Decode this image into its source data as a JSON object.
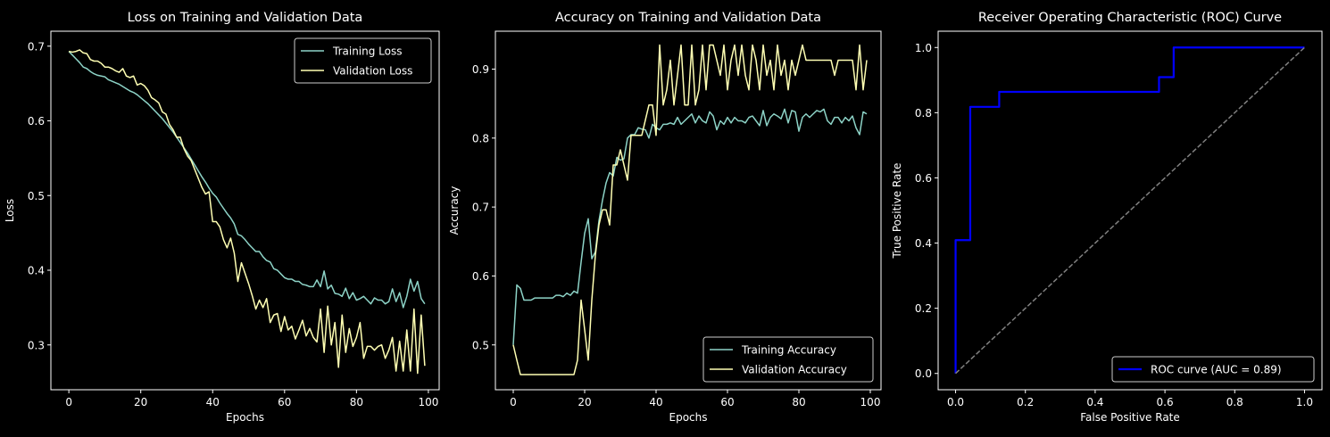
{
  "chart_data": [
    {
      "type": "line",
      "title": "Loss on Training and Validation Data",
      "xlabel": "Epochs",
      "ylabel": "Loss",
      "xlim": [
        -5,
        103
      ],
      "ylim": [
        0.24,
        0.72
      ],
      "xticks": [
        0,
        20,
        40,
        60,
        80,
        100
      ],
      "yticks": [
        0.3,
        0.4,
        0.5,
        0.6,
        0.7
      ],
      "legend_position": "top-right",
      "grid": false,
      "series": [
        {
          "name": "Training Loss",
          "color": "#8dd3c7",
          "x": [
            0,
            1,
            2,
            3,
            4,
            5,
            6,
            7,
            8,
            9,
            10,
            11,
            12,
            13,
            14,
            15,
            16,
            17,
            18,
            19,
            20,
            21,
            22,
            23,
            24,
            25,
            26,
            27,
            28,
            29,
            30,
            31,
            32,
            33,
            34,
            35,
            36,
            37,
            38,
            39,
            40,
            41,
            42,
            43,
            44,
            45,
            46,
            47,
            48,
            49,
            50,
            51,
            52,
            53,
            54,
            55,
            56,
            57,
            58,
            59,
            60,
            61,
            62,
            63,
            64,
            65,
            66,
            67,
            68,
            69,
            70,
            71,
            72,
            73,
            74,
            75,
            76,
            77,
            78,
            79,
            80,
            81,
            82,
            83,
            84,
            85,
            86,
            87,
            88,
            89,
            90,
            91,
            92,
            93,
            94,
            95,
            96,
            97,
            98,
            99
          ],
          "y": [
            0.693,
            0.688,
            0.683,
            0.678,
            0.672,
            0.67,
            0.666,
            0.663,
            0.661,
            0.66,
            0.659,
            0.655,
            0.653,
            0.651,
            0.649,
            0.646,
            0.643,
            0.64,
            0.638,
            0.635,
            0.631,
            0.627,
            0.623,
            0.618,
            0.613,
            0.608,
            0.603,
            0.597,
            0.591,
            0.585,
            0.578,
            0.571,
            0.564,
            0.557,
            0.549,
            0.541,
            0.533,
            0.525,
            0.518,
            0.51,
            0.503,
            0.498,
            0.49,
            0.483,
            0.476,
            0.47,
            0.462,
            0.448,
            0.446,
            0.441,
            0.435,
            0.43,
            0.425,
            0.425,
            0.418,
            0.413,
            0.411,
            0.402,
            0.4,
            0.395,
            0.39,
            0.388,
            0.388,
            0.385,
            0.385,
            0.381,
            0.38,
            0.378,
            0.378,
            0.387,
            0.378,
            0.399,
            0.375,
            0.38,
            0.369,
            0.368,
            0.365,
            0.376,
            0.362,
            0.37,
            0.36,
            0.362,
            0.365,
            0.36,
            0.355,
            0.363,
            0.36,
            0.36,
            0.355,
            0.358,
            0.375,
            0.358,
            0.37,
            0.35,
            0.365,
            0.388,
            0.372,
            0.385,
            0.362,
            0.355
          ]
        },
        {
          "name": "Validation Loss",
          "color": "#ffffb3",
          "x": [
            0,
            1,
            2,
            3,
            4,
            5,
            6,
            7,
            8,
            9,
            10,
            11,
            12,
            13,
            14,
            15,
            16,
            17,
            18,
            19,
            20,
            21,
            22,
            23,
            24,
            25,
            26,
            27,
            28,
            29,
            30,
            31,
            32,
            33,
            34,
            35,
            36,
            37,
            38,
            39,
            40,
            41,
            42,
            43,
            44,
            45,
            46,
            47,
            48,
            49,
            50,
            51,
            52,
            53,
            54,
            55,
            56,
            57,
            58,
            59,
            60,
            61,
            62,
            63,
            64,
            65,
            66,
            67,
            68,
            69,
            70,
            71,
            72,
            73,
            74,
            75,
            76,
            77,
            78,
            79,
            80,
            81,
            82,
            83,
            84,
            85,
            86,
            87,
            88,
            89,
            90,
            91,
            92,
            93,
            94,
            95,
            96,
            97,
            98,
            99
          ],
          "y": [
            0.693,
            0.692,
            0.693,
            0.695,
            0.691,
            0.69,
            0.682,
            0.68,
            0.68,
            0.677,
            0.672,
            0.672,
            0.67,
            0.667,
            0.665,
            0.67,
            0.66,
            0.658,
            0.66,
            0.648,
            0.65,
            0.647,
            0.641,
            0.631,
            0.628,
            0.624,
            0.612,
            0.609,
            0.595,
            0.588,
            0.578,
            0.578,
            0.563,
            0.553,
            0.547,
            0.535,
            0.523,
            0.511,
            0.502,
            0.505,
            0.465,
            0.465,
            0.458,
            0.441,
            0.43,
            0.443,
            0.423,
            0.385,
            0.41,
            0.396,
            0.382,
            0.366,
            0.348,
            0.36,
            0.35,
            0.362,
            0.33,
            0.34,
            0.342,
            0.318,
            0.338,
            0.32,
            0.325,
            0.308,
            0.32,
            0.333,
            0.312,
            0.322,
            0.31,
            0.304,
            0.348,
            0.29,
            0.352,
            0.3,
            0.33,
            0.27,
            0.34,
            0.29,
            0.322,
            0.298,
            0.31,
            0.33,
            0.282,
            0.298,
            0.298,
            0.293,
            0.298,
            0.3,
            0.282,
            0.293,
            0.31,
            0.265,
            0.305,
            0.265,
            0.32,
            0.265,
            0.348,
            0.262,
            0.34,
            0.272
          ]
        }
      ]
    },
    {
      "type": "line",
      "title": "Accuracy on Training and Validation Data",
      "xlabel": "Epochs",
      "ylabel": "Accuracy",
      "xlim": [
        -5,
        103
      ],
      "ylim": [
        0.435,
        0.955
      ],
      "xticks": [
        0,
        20,
        40,
        60,
        80,
        100
      ],
      "yticks": [
        0.5,
        0.6,
        0.7,
        0.8,
        0.9
      ],
      "legend_position": "bottom-right",
      "grid": false,
      "series": [
        {
          "name": "Training Accuracy",
          "color": "#8dd3c7",
          "x": [
            0,
            1,
            2,
            3,
            4,
            5,
            6,
            7,
            8,
            9,
            10,
            11,
            12,
            13,
            14,
            15,
            16,
            17,
            18,
            19,
            20,
            21,
            22,
            23,
            24,
            25,
            26,
            27,
            28,
            29,
            30,
            31,
            32,
            33,
            34,
            35,
            36,
            37,
            38,
            39,
            40,
            41,
            42,
            43,
            44,
            45,
            46,
            47,
            48,
            49,
            50,
            51,
            52,
            53,
            54,
            55,
            56,
            57,
            58,
            59,
            60,
            61,
            62,
            63,
            64,
            65,
            66,
            67,
            68,
            69,
            70,
            71,
            72,
            73,
            74,
            75,
            76,
            77,
            78,
            79,
            80,
            81,
            82,
            83,
            84,
            85,
            86,
            87,
            88,
            89,
            90,
            91,
            92,
            93,
            94,
            95,
            96,
            97,
            98,
            99
          ],
          "y": [
            0.5,
            0.587,
            0.582,
            0.565,
            0.565,
            0.565,
            0.568,
            0.568,
            0.568,
            0.568,
            0.568,
            0.568,
            0.572,
            0.572,
            0.57,
            0.575,
            0.572,
            0.578,
            0.575,
            0.62,
            0.662,
            0.683,
            0.625,
            0.635,
            0.68,
            0.71,
            0.735,
            0.75,
            0.745,
            0.772,
            0.768,
            0.77,
            0.8,
            0.805,
            0.805,
            0.815,
            0.813,
            0.812,
            0.8,
            0.82,
            0.815,
            0.812,
            0.82,
            0.82,
            0.822,
            0.82,
            0.83,
            0.82,
            0.825,
            0.83,
            0.835,
            0.822,
            0.832,
            0.825,
            0.822,
            0.838,
            0.832,
            0.812,
            0.825,
            0.82,
            0.83,
            0.822,
            0.83,
            0.825,
            0.825,
            0.822,
            0.83,
            0.832,
            0.825,
            0.818,
            0.84,
            0.818,
            0.83,
            0.835,
            0.832,
            0.828,
            0.842,
            0.822,
            0.84,
            0.838,
            0.81,
            0.83,
            0.835,
            0.83,
            0.835,
            0.84,
            0.838,
            0.842,
            0.825,
            0.82,
            0.83,
            0.83,
            0.822,
            0.83,
            0.825,
            0.832,
            0.815,
            0.805,
            0.838,
            0.835
          ]
        },
        {
          "name": "Validation Accuracy",
          "color": "#ffffb3",
          "x": [
            0,
            1,
            2,
            3,
            4,
            5,
            6,
            7,
            8,
            9,
            10,
            11,
            12,
            13,
            14,
            15,
            16,
            17,
            18,
            19,
            20,
            21,
            22,
            23,
            24,
            25,
            26,
            27,
            28,
            29,
            30,
            31,
            32,
            33,
            34,
            35,
            36,
            37,
            38,
            39,
            40,
            41,
            42,
            43,
            44,
            45,
            46,
            47,
            48,
            49,
            50,
            51,
            52,
            53,
            54,
            55,
            56,
            57,
            58,
            59,
            60,
            61,
            62,
            63,
            64,
            65,
            66,
            67,
            68,
            69,
            70,
            71,
            72,
            73,
            74,
            75,
            76,
            77,
            78,
            79,
            80,
            81,
            82,
            83,
            84,
            85,
            86,
            87,
            88,
            89,
            90,
            91,
            92,
            93,
            94,
            95,
            96,
            97,
            98,
            99
          ],
          "y": [
            0.5,
            0.478,
            0.457,
            0.457,
            0.457,
            0.457,
            0.457,
            0.457,
            0.457,
            0.457,
            0.457,
            0.457,
            0.457,
            0.457,
            0.457,
            0.457,
            0.457,
            0.457,
            0.478,
            0.565,
            0.522,
            0.478,
            0.565,
            0.63,
            0.674,
            0.696,
            0.696,
            0.674,
            0.761,
            0.761,
            0.783,
            0.761,
            0.739,
            0.804,
            0.804,
            0.804,
            0.804,
            0.826,
            0.848,
            0.848,
            0.804,
            0.935,
            0.848,
            0.87,
            0.913,
            0.848,
            0.891,
            0.935,
            0.848,
            0.848,
            0.935,
            0.848,
            0.87,
            0.935,
            0.87,
            0.935,
            0.935,
            0.913,
            0.891,
            0.935,
            0.87,
            0.913,
            0.935,
            0.891,
            0.935,
            0.891,
            0.87,
            0.935,
            0.913,
            0.87,
            0.935,
            0.891,
            0.913,
            0.87,
            0.935,
            0.891,
            0.913,
            0.87,
            0.913,
            0.891,
            0.913,
            0.935,
            0.913,
            0.913,
            0.913,
            0.913,
            0.913,
            0.913,
            0.913,
            0.913,
            0.891,
            0.913,
            0.913,
            0.913,
            0.913,
            0.913,
            0.87,
            0.935,
            0.87,
            0.913
          ]
        }
      ]
    },
    {
      "type": "line",
      "title": "Receiver Operating Characteristic (ROC) Curve",
      "xlabel": "False Positive Rate",
      "ylabel": "True Positive Rate",
      "xlim": [
        -0.05,
        1.05
      ],
      "ylim": [
        -0.05,
        1.05
      ],
      "xticks": [
        0.0,
        0.2,
        0.4,
        0.6,
        0.8,
        1.0
      ],
      "yticks": [
        0.0,
        0.2,
        0.4,
        0.6,
        0.8,
        1.0
      ],
      "legend_position": "bottom-right",
      "grid": false,
      "series": [
        {
          "name": "ROC curve (AUC = 0.89)",
          "color": "#0000ff",
          "x": [
            0.0,
            0.0,
            0.042,
            0.042,
            0.125,
            0.125,
            0.583,
            0.583,
            0.625,
            0.625,
            1.0
          ],
          "y": [
            0.0,
            0.409,
            0.409,
            0.818,
            0.818,
            0.864,
            0.864,
            0.909,
            0.909,
            1.0,
            1.0
          ]
        },
        {
          "name": "",
          "color": "#808080",
          "dashed": true,
          "x": [
            0.0,
            1.0
          ],
          "y": [
            0.0,
            1.0
          ]
        }
      ]
    }
  ]
}
